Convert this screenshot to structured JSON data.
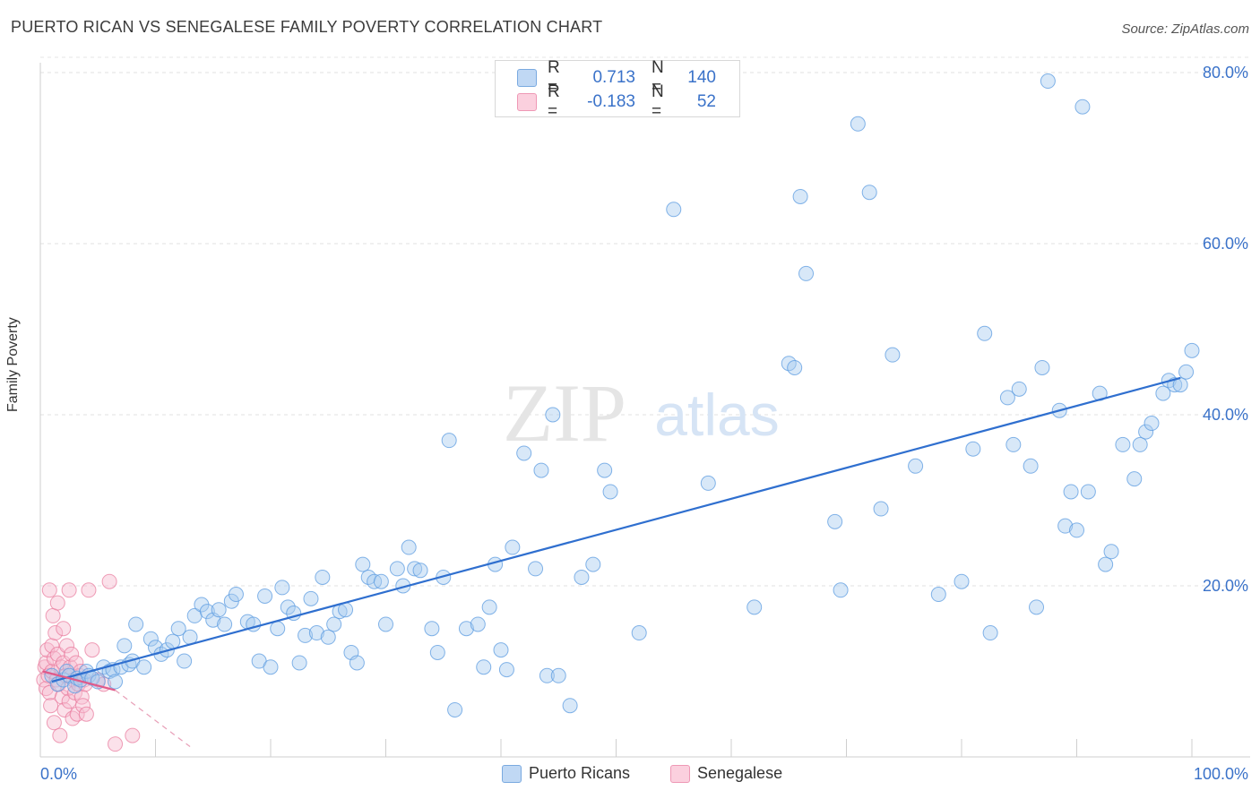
{
  "header": {
    "title": "PUERTO RICAN VS SENEGALESE FAMILY POVERTY CORRELATION CHART",
    "source": "Source: ZipAtlas.com"
  },
  "watermark": {
    "part1": "ZIP",
    "part2": "atlas"
  },
  "legend": {
    "rows": [
      {
        "r_label": "R = ",
        "r_value": "0.713",
        "n_label": "N = ",
        "n_value": "140",
        "color": "#9cc3ec"
      },
      {
        "r_label": "R = ",
        "r_value": "-0.183",
        "n_label": "N = ",
        "n_value": "52",
        "color": "#f4b3c8"
      }
    ]
  },
  "bottom_legend": [
    {
      "label": "Puerto Ricans",
      "color": "#9cc3ec"
    },
    {
      "label": "Senegalese",
      "color": "#f4b3c8"
    }
  ],
  "chart_data": {
    "type": "scatter",
    "title": "PUERTO RICAN VS SENEGALESE FAMILY POVERTY CORRELATION CHART",
    "xlabel": "",
    "ylabel": "Family Poverty",
    "xlim": [
      0,
      100
    ],
    "ylim": [
      0,
      85
    ],
    "x_tick_labels": [
      "0.0%",
      "100.0%"
    ],
    "y_tick_labels": [
      "20.0%",
      "40.0%",
      "60.0%",
      "80.0%"
    ],
    "y_ticks": [
      20,
      40,
      60,
      80
    ],
    "grid": true,
    "series": [
      {
        "name": "Puerto Ricans",
        "color": "#5b9be0",
        "fill": "#a9cbf0",
        "trend": {
          "x": [
            1,
            99
          ],
          "y": [
            8.8,
            44.3
          ],
          "color": "#2f6fcf",
          "style": "solid"
        },
        "points": [
          [
            1,
            9.5
          ],
          [
            1.5,
            8.5
          ],
          [
            2,
            9
          ],
          [
            2.3,
            10
          ],
          [
            2.5,
            9.5
          ],
          [
            3,
            8.3
          ],
          [
            3.2,
            9.2
          ],
          [
            3.5,
            9
          ],
          [
            4,
            10
          ],
          [
            4.2,
            9.5
          ],
          [
            4.5,
            9.2
          ],
          [
            5,
            8.8
          ],
          [
            5.5,
            10.5
          ],
          [
            6,
            10
          ],
          [
            6.3,
            10.2
          ],
          [
            6.5,
            8.8
          ],
          [
            7,
            10.5
          ],
          [
            7.3,
            13
          ],
          [
            7.7,
            10.8
          ],
          [
            8,
            11.2
          ],
          [
            8.3,
            15.5
          ],
          [
            9,
            10.5
          ],
          [
            9.6,
            13.8
          ],
          [
            10,
            12.8
          ],
          [
            10.5,
            12
          ],
          [
            11,
            12.5
          ],
          [
            11.5,
            13.5
          ],
          [
            12,
            15
          ],
          [
            12.5,
            11.2
          ],
          [
            13,
            14
          ],
          [
            13.4,
            16.5
          ],
          [
            14,
            17.8
          ],
          [
            14.5,
            17
          ],
          [
            15,
            16
          ],
          [
            15.5,
            17.2
          ],
          [
            16,
            15.5
          ],
          [
            16.6,
            18.2
          ],
          [
            17,
            19
          ],
          [
            18,
            15.8
          ],
          [
            18.5,
            15.5
          ],
          [
            19,
            11.2
          ],
          [
            19.5,
            18.8
          ],
          [
            20,
            10.5
          ],
          [
            20.6,
            15
          ],
          [
            21,
            19.8
          ],
          [
            21.5,
            17.5
          ],
          [
            22,
            16.8
          ],
          [
            22.5,
            11
          ],
          [
            23,
            14.2
          ],
          [
            23.5,
            18.5
          ],
          [
            24,
            14.5
          ],
          [
            24.5,
            21
          ],
          [
            25,
            14
          ],
          [
            25.5,
            15.5
          ],
          [
            26,
            17
          ],
          [
            26.5,
            17.2
          ],
          [
            27,
            12.2
          ],
          [
            27.5,
            11
          ],
          [
            28,
            22.5
          ],
          [
            28.5,
            21
          ],
          [
            29,
            20.5
          ],
          [
            29.6,
            20.5
          ],
          [
            30,
            15.5
          ],
          [
            31,
            22
          ],
          [
            31.5,
            20
          ],
          [
            32,
            24.5
          ],
          [
            32.5,
            22
          ],
          [
            33,
            21.8
          ],
          [
            34,
            15
          ],
          [
            34.5,
            12.2
          ],
          [
            35,
            21
          ],
          [
            35.5,
            37
          ],
          [
            36,
            5.5
          ],
          [
            37,
            15
          ],
          [
            38,
            15.5
          ],
          [
            38.5,
            10.5
          ],
          [
            39,
            17.5
          ],
          [
            39.5,
            22.5
          ],
          [
            40,
            12.5
          ],
          [
            40.5,
            10.2
          ],
          [
            41,
            24.5
          ],
          [
            42,
            35.5
          ],
          [
            43,
            22
          ],
          [
            43.5,
            33.5
          ],
          [
            44,
            9.5
          ],
          [
            44.5,
            40
          ],
          [
            45,
            9.5
          ],
          [
            46,
            6
          ],
          [
            47,
            21
          ],
          [
            48,
            22.5
          ],
          [
            49,
            33.5
          ],
          [
            49.5,
            31
          ],
          [
            52,
            14.5
          ],
          [
            55,
            64
          ],
          [
            58,
            32
          ],
          [
            62,
            17.5
          ],
          [
            65,
            46
          ],
          [
            65.5,
            45.5
          ],
          [
            66,
            65.5
          ],
          [
            66.5,
            56.5
          ],
          [
            69,
            27.5
          ],
          [
            69.5,
            19.5
          ],
          [
            71,
            74
          ],
          [
            72,
            66
          ],
          [
            73,
            29
          ],
          [
            74,
            47
          ],
          [
            76,
            34
          ],
          [
            78,
            19
          ],
          [
            80,
            20.5
          ],
          [
            81,
            36
          ],
          [
            82,
            49.5
          ],
          [
            82.5,
            14.5
          ],
          [
            84,
            42
          ],
          [
            84.5,
            36.5
          ],
          [
            85,
            43
          ],
          [
            86,
            34
          ],
          [
            86.5,
            17.5
          ],
          [
            87,
            45.5
          ],
          [
            87.5,
            79
          ],
          [
            88.5,
            40.5
          ],
          [
            89,
            27
          ],
          [
            89.5,
            31
          ],
          [
            90,
            26.5
          ],
          [
            90.5,
            76
          ],
          [
            91,
            31
          ],
          [
            92,
            42.5
          ],
          [
            92.5,
            22.5
          ],
          [
            93,
            24
          ],
          [
            94,
            36.5
          ],
          [
            95,
            32.5
          ],
          [
            95.5,
            36.5
          ],
          [
            96,
            38
          ],
          [
            96.5,
            39
          ],
          [
            97.5,
            42.5
          ],
          [
            98,
            44
          ],
          [
            98.5,
            43.5
          ],
          [
            99,
            43.5
          ],
          [
            99.5,
            45
          ],
          [
            100,
            47.5
          ]
        ]
      },
      {
        "name": "Senegalese",
        "color": "#e8769a",
        "fill": "#f7bcd0",
        "trend": {
          "x": [
            0.2,
            6.5
          ],
          "y": [
            10,
            7.8
          ],
          "color": "#e05a8a",
          "style": "solid"
        },
        "trend_ext": {
          "x": [
            6.5,
            13
          ],
          "y": [
            7.8,
            1.2
          ],
          "color": "#e8a0b8",
          "style": "dashed"
        },
        "points": [
          [
            0.3,
            9
          ],
          [
            0.4,
            10.5
          ],
          [
            0.5,
            8
          ],
          [
            0.5,
            11
          ],
          [
            0.6,
            12.5
          ],
          [
            0.7,
            9.5
          ],
          [
            0.8,
            19.5
          ],
          [
            0.8,
            7.5
          ],
          [
            0.9,
            6
          ],
          [
            1,
            13
          ],
          [
            1,
            10
          ],
          [
            1.1,
            16.5
          ],
          [
            1.2,
            4
          ],
          [
            1.2,
            11.5
          ],
          [
            1.3,
            14.5
          ],
          [
            1.4,
            9
          ],
          [
            1.5,
            18
          ],
          [
            1.5,
            12
          ],
          [
            1.6,
            8.5
          ],
          [
            1.7,
            2.5
          ],
          [
            1.8,
            10.5
          ],
          [
            1.9,
            7
          ],
          [
            2,
            15
          ],
          [
            2,
            11
          ],
          [
            2.1,
            5.5
          ],
          [
            2.2,
            9.5
          ],
          [
            2.3,
            13
          ],
          [
            2.4,
            8
          ],
          [
            2.5,
            19.5
          ],
          [
            2.5,
            6.5
          ],
          [
            2.6,
            10.5
          ],
          [
            2.7,
            12
          ],
          [
            2.8,
            4.5
          ],
          [
            2.9,
            9
          ],
          [
            3,
            7.5
          ],
          [
            3.1,
            11
          ],
          [
            3.2,
            5
          ],
          [
            3.3,
            8.5
          ],
          [
            3.4,
            9.5
          ],
          [
            3.5,
            10
          ],
          [
            3.6,
            7
          ],
          [
            3.7,
            6
          ],
          [
            3.8,
            9
          ],
          [
            3.9,
            8.5
          ],
          [
            4,
            5
          ],
          [
            4.2,
            19.5
          ],
          [
            4.5,
            12.5
          ],
          [
            5,
            9
          ],
          [
            5.5,
            8.5
          ],
          [
            6,
            20.5
          ],
          [
            6.5,
            1.5
          ],
          [
            8,
            2.5
          ]
        ]
      }
    ]
  }
}
